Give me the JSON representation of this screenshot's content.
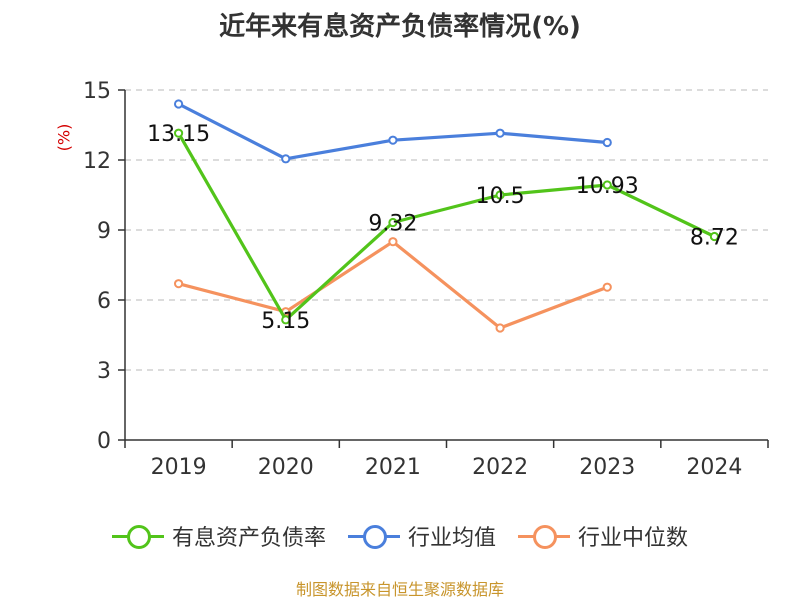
{
  "chart_data": {
    "type": "line",
    "title": "近年来有息资产负债率情况(%)",
    "ylabel": "(%)",
    "xlabel": "",
    "categories": [
      "2019",
      "2020",
      "2021",
      "2022",
      "2023",
      "2024"
    ],
    "ylim": [
      0,
      15
    ],
    "yticks": [
      0,
      3,
      6,
      9,
      12,
      15
    ],
    "grid": true,
    "legend_position": "bottom",
    "series": [
      {
        "name": "有息资产负债率",
        "color": "#52c41a",
        "values": [
          13.15,
          5.15,
          9.32,
          10.5,
          10.93,
          8.72
        ],
        "labels": [
          "13.15",
          "5.15",
          "9.32",
          "10.5",
          "10.93",
          "8.72"
        ]
      },
      {
        "name": "行业均值",
        "color": "#4a7fdc",
        "values": [
          14.4,
          12.05,
          12.85,
          13.15,
          12.75,
          null
        ]
      },
      {
        "name": "行业中位数",
        "color": "#f5925e",
        "values": [
          6.7,
          5.5,
          8.5,
          4.8,
          6.55,
          null
        ]
      }
    ]
  },
  "source": "制图数据来自恒生聚源数据库"
}
